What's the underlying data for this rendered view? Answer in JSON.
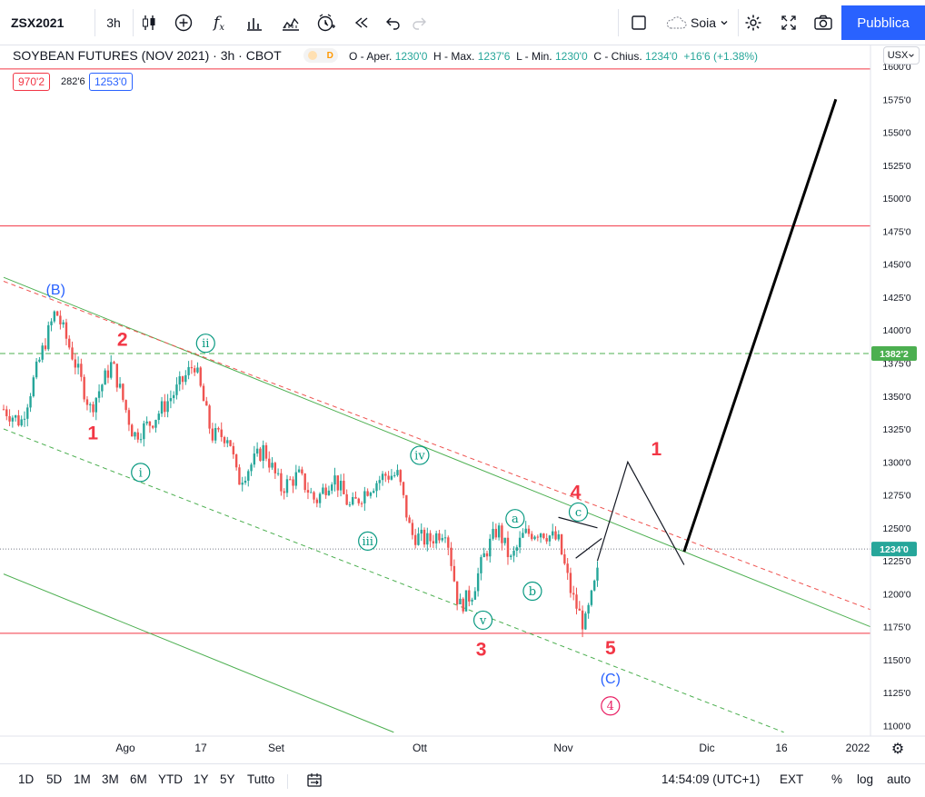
{
  "toolbar": {
    "symbol": "ZSX2021",
    "interval": "3h",
    "compare_label": "Soia",
    "publish_label": "Pubblica"
  },
  "legend": {
    "title": "SOYBEAN FUTURES (NOV 2021) · 3h · CBOT",
    "badge": "D",
    "o_label": "O - Aper.",
    "o": "1230'0",
    "h_label": "H - Max.",
    "h": "1237'6",
    "l_label": "L - Min.",
    "l": "1230'0",
    "c_label": "C - Chius.",
    "c": "1234'0",
    "change": "+16'6 (+1.38%)",
    "ind1": "970'2",
    "ind2": "282'6",
    "ind3": "1253'0",
    "currency": "USX"
  },
  "bottom": {
    "ranges": [
      "1D",
      "5D",
      "1M",
      "3M",
      "6M",
      "YTD",
      "1Y",
      "5Y",
      "Tutto"
    ],
    "time": "14:54:09 (UTC+1)",
    "ext": "EXT",
    "pct": "%",
    "log": "log",
    "auto": "auto"
  },
  "colors": {
    "up": "#26a69a",
    "down": "#ef5350",
    "wave_red": "#f23645",
    "wave_blue": "#2962ff",
    "wave_green": "#089981",
    "channel": "#4caf50",
    "accent": "#2962ff"
  },
  "chart_data": {
    "type": "candlestick",
    "title": "SOYBEAN FUTURES (NOV 2021)",
    "ylim": [
      1100,
      1600
    ],
    "y_ticks": [
      "1600'0",
      "1575'0",
      "1550'0",
      "1525'0",
      "1500'0",
      "1475'0",
      "1450'0",
      "1425'0",
      "1400'0",
      "1375'0",
      "1350'0",
      "1325'0",
      "1300'0",
      "1275'0",
      "1250'0",
      "1225'0",
      "1200'0",
      "1175'0",
      "1150'0",
      "1125'0",
      "1100'0"
    ],
    "x_ticks": [
      "Ago",
      "17",
      "Set",
      "Ott",
      "Nov",
      "Dic",
      "16",
      "2022"
    ],
    "price_labels": [
      {
        "text": "1382'2",
        "value": 1382.25,
        "color": "#4caf50"
      },
      {
        "text": "1234'0",
        "value": 1234,
        "color": "#26a69a"
      }
    ],
    "horizontal_lines": [
      {
        "value": 1598,
        "style": "solid",
        "color": "#f23645"
      },
      {
        "value": 1479,
        "style": "solid",
        "color": "#f23645"
      },
      {
        "value": 1382.25,
        "style": "dashed",
        "color": "#4caf50"
      },
      {
        "value": 1234,
        "style": "dotted",
        "color": "#787b86"
      },
      {
        "value": 1170,
        "style": "solid",
        "color": "#f23645"
      }
    ],
    "price_path": [
      [
        0,
        1340
      ],
      [
        0.02,
        1330
      ],
      [
        0.045,
        1385
      ],
      [
        0.06,
        1415
      ],
      [
        0.08,
        1380
      ],
      [
        0.1,
        1340
      ],
      [
        0.125,
        1375
      ],
      [
        0.15,
        1320
      ],
      [
        0.17,
        1330
      ],
      [
        0.2,
        1355
      ],
      [
        0.22,
        1375
      ],
      [
        0.24,
        1320
      ],
      [
        0.26,
        1320
      ],
      [
        0.27,
        1285
      ],
      [
        0.3,
        1310
      ],
      [
        0.32,
        1280
      ],
      [
        0.34,
        1290
      ],
      [
        0.36,
        1270
      ],
      [
        0.38,
        1290
      ],
      [
        0.4,
        1265
      ],
      [
        0.42,
        1280
      ],
      [
        0.44,
        1290
      ],
      [
        0.455,
        1290
      ],
      [
        0.47,
        1245
      ],
      [
        0.49,
        1240
      ],
      [
        0.51,
        1250
      ],
      [
        0.525,
        1190
      ],
      [
        0.54,
        1200
      ],
      [
        0.555,
        1230
      ],
      [
        0.57,
        1250
      ],
      [
        0.585,
        1225
      ],
      [
        0.6,
        1245
      ],
      [
        0.62,
        1248
      ],
      [
        0.64,
        1240
      ],
      [
        0.655,
        1200
      ],
      [
        0.67,
        1175
      ],
      [
        0.685,
        1215
      ]
    ],
    "wave_labels": [
      {
        "text": "(B)",
        "color": "#2962ff",
        "circle": false
      },
      {
        "text": "2",
        "color": "#f23645",
        "circle": false
      },
      {
        "text": "1",
        "color": "#f23645",
        "circle": false
      },
      {
        "text": "ii",
        "color": "#089981",
        "circle": true
      },
      {
        "text": "i",
        "color": "#089981",
        "circle": true
      },
      {
        "text": "iv",
        "color": "#089981",
        "circle": true
      },
      {
        "text": "iii",
        "color": "#089981",
        "circle": true
      },
      {
        "text": "a",
        "color": "#089981",
        "circle": true
      },
      {
        "text": "b",
        "color": "#089981",
        "circle": true
      },
      {
        "text": "c",
        "color": "#089981",
        "circle": true
      },
      {
        "text": "4",
        "color": "#f23645",
        "circle": false
      },
      {
        "text": "v",
        "color": "#089981",
        "circle": true
      },
      {
        "text": "3",
        "color": "#f23645",
        "circle": false
      },
      {
        "text": "5",
        "color": "#f23645",
        "circle": false
      },
      {
        "text": "(C)",
        "color": "#2962ff",
        "circle": false
      },
      {
        "text": "4",
        "color": "#e91e63",
        "circle": true
      },
      {
        "text": "1",
        "color": "#f23645",
        "circle": false
      }
    ],
    "projection": [
      {
        "x_frac": 0.685,
        "value": 1225
      },
      {
        "x_frac": 0.72,
        "value": 1300
      },
      {
        "x_frac": 0.785,
        "value": 1222
      },
      {
        "x_frac": 0.785,
        "value": 1232
      },
      {
        "x_frac": 0.96,
        "value": 1575
      }
    ]
  }
}
